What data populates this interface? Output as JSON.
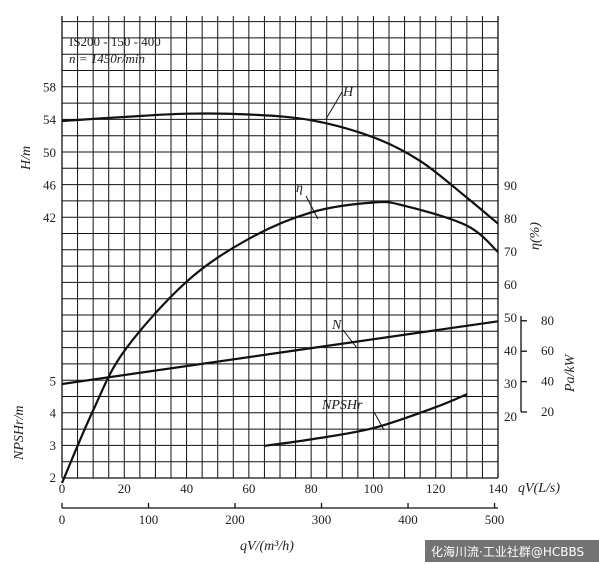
{
  "chart_data": {
    "type": "line",
    "annotation_model": "IS200 - 150 - 400",
    "annotation_speed": "n = 1450r/min",
    "x_axis_ls": {
      "label": "qV(L/s)",
      "ticks": [
        0,
        20,
        40,
        60,
        80,
        100,
        120,
        140
      ],
      "range": [
        0,
        140
      ]
    },
    "x_axis_m3h": {
      "label": "qV/(m³/h)",
      "ticks": [
        0,
        100,
        200,
        300,
        400,
        500
      ],
      "range": [
        0,
        504
      ]
    },
    "y_axis_H": {
      "label": "H/m",
      "ticks": [
        42,
        46,
        50,
        54,
        58
      ]
    },
    "y_axis_NPSH": {
      "label": "NPSHr/m",
      "ticks": [
        2,
        3,
        4,
        5
      ]
    },
    "y_axis_eta": {
      "label": "η(%)",
      "ticks": [
        20,
        30,
        40,
        50,
        60,
        70,
        80,
        90
      ]
    },
    "y_axis_power": {
      "label": "Pa/kW",
      "ticks": [
        20,
        40,
        60,
        80
      ]
    },
    "series": [
      {
        "name": "H",
        "axis": "H",
        "x": [
          0,
          20,
          40,
          60,
          80,
          100,
          115,
          130,
          140
        ],
        "y": [
          53.9,
          54.4,
          54.8,
          54.7,
          54.0,
          51.9,
          49.0,
          44.5,
          41.3
        ]
      },
      {
        "name": "η",
        "axis": "eta",
        "x": [
          0,
          10,
          20,
          40,
          60,
          80,
          100,
          110,
          130,
          140
        ],
        "y": [
          0,
          22,
          40,
          61,
          74,
          82,
          85,
          84,
          78,
          70
        ]
      },
      {
        "name": "N",
        "axis": "eta",
        "x": [
          0,
          140
        ],
        "y": [
          30,
          49
        ]
      },
      {
        "name": "NPSHr",
        "axis": "NPSH",
        "x": [
          65,
          80,
          100,
          120,
          130
        ],
        "y": [
          3.0,
          3.2,
          3.55,
          4.2,
          4.6
        ]
      }
    ]
  },
  "watermark": "化海川流·工业社群@HCBBS"
}
